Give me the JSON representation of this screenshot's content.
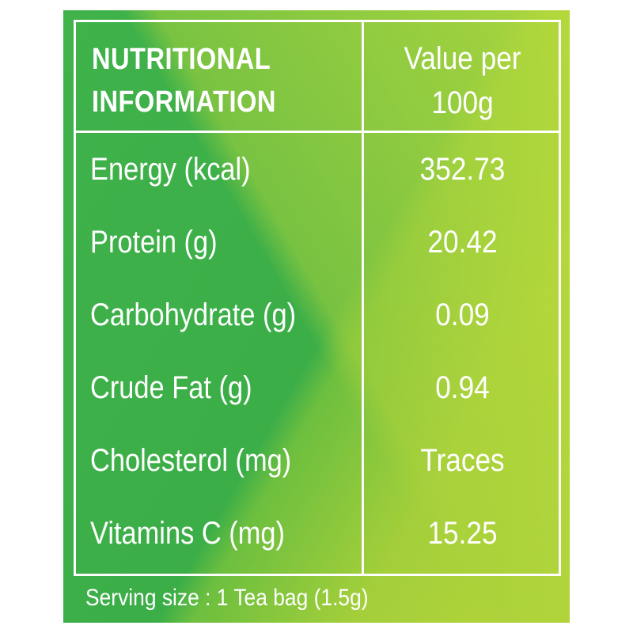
{
  "header": {
    "nutrient_line1": "NUTRITIONAL",
    "nutrient_line2": "INFORMATION",
    "value_line1": "Value per",
    "value_line2": "100g"
  },
  "rows": [
    {
      "label": "Energy (kcal)",
      "value": "352.73"
    },
    {
      "label": "Protein (g)",
      "value": "20.42"
    },
    {
      "label": "Carbohydrate (g)",
      "value": "0.09"
    },
    {
      "label": "Crude Fat (g)",
      "value": "0.94"
    },
    {
      "label": "Cholesterol (mg)",
      "value": "Traces"
    },
    {
      "label": "Vitamins C (mg)",
      "value": "15.25"
    }
  ],
  "footer": {
    "serving": "Serving size : 1 Tea bag (1.5g)"
  },
  "colors": {
    "panel_green": "#3fb24a",
    "panel_lime": "#b6d53a",
    "text": "#ffffff"
  }
}
